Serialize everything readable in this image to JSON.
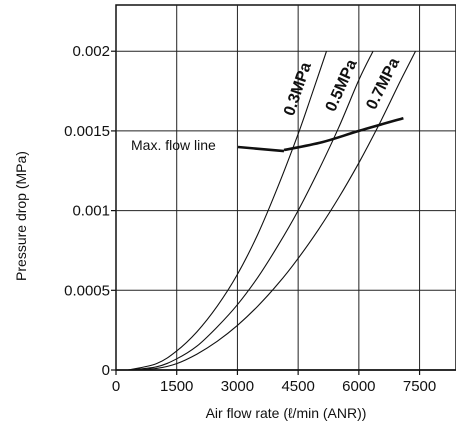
{
  "chart_data": {
    "type": "line",
    "title": "",
    "xlabel": "Air flow rate (ℓ/min (ANR))",
    "ylabel": "Pressure drop (MPa)",
    "xlim": [
      0,
      8400
    ],
    "ylim": [
      0,
      0.00229
    ],
    "grid": true,
    "x_ticks": [
      0,
      1500,
      3000,
      4500,
      6000,
      7500
    ],
    "x_tick_labels": [
      "0",
      "1500",
      "3000",
      "4500",
      "6000",
      "7500"
    ],
    "y_ticks": [
      0,
      0.0005,
      0.001,
      0.0015,
      0.002
    ],
    "y_tick_labels": [
      "0",
      "0.0005",
      "0.001",
      "0.0015",
      "0.002"
    ],
    "series": [
      {
        "name": "0.3MPa",
        "x": [
          300,
          1000,
          1500,
          2000,
          2500,
          3000,
          3500,
          4000,
          4500,
          4800,
          5200
        ],
        "y": [
          0,
          4e-05,
          0.00012,
          0.00024,
          0.0004,
          0.0006,
          0.00085,
          0.00115,
          0.00148,
          0.0017,
          0.002
        ]
      },
      {
        "name": "0.5MPa",
        "x": [
          300,
          1000,
          1500,
          2000,
          2500,
          3000,
          3500,
          4000,
          4500,
          5000,
          5500,
          6000,
          6350
        ],
        "y": [
          0,
          2e-05,
          7e-05,
          0.00015,
          0.00027,
          0.00041,
          0.00058,
          0.00078,
          0.001,
          0.00125,
          0.00152,
          0.00182,
          0.002
        ]
      },
      {
        "name": "0.7MPa",
        "x": [
          300,
          1000,
          1500,
          2000,
          2500,
          3000,
          3500,
          4000,
          4500,
          5000,
          5500,
          6000,
          6500,
          7000,
          7400
        ],
        "y": [
          0,
          1e-05,
          4e-05,
          0.0001,
          0.00018,
          0.00028,
          0.0004,
          0.00054,
          0.0007,
          0.00088,
          0.00108,
          0.0013,
          0.00154,
          0.0018,
          0.002
        ]
      }
    ],
    "max_flow_line": {
      "x": [
        4150,
        5100,
        6000,
        7100
      ],
      "y": [
        0.00138,
        0.00143,
        0.0015,
        0.00158
      ]
    },
    "annotations": [
      {
        "text": "Max. flow line"
      }
    ]
  }
}
